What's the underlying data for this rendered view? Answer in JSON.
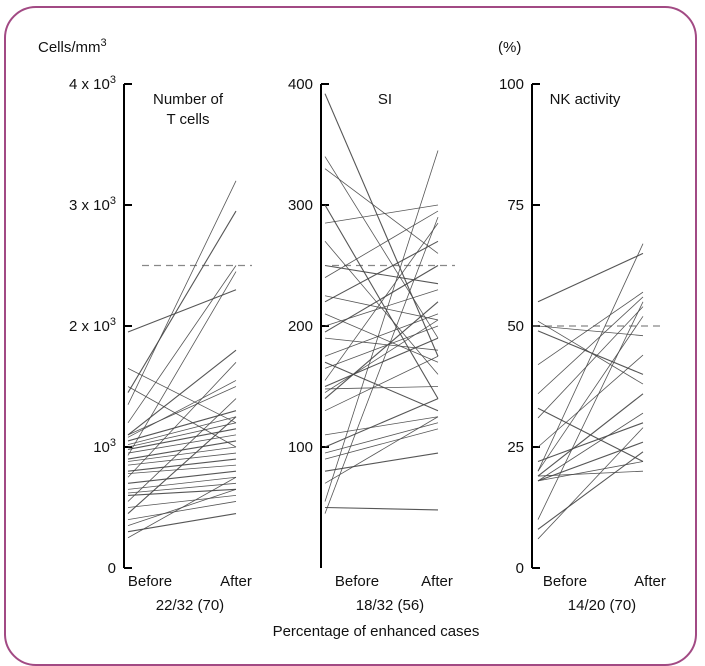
{
  "figure": {
    "bottom_label": "Percentage of enhanced cases",
    "colors": {
      "frame": "#a24a84",
      "line": "#444444",
      "axis": "#000000",
      "ref": "#888888"
    }
  },
  "chart_data": [
    {
      "type": "line",
      "title_lines": [
        "Number of",
        "T cells"
      ],
      "unit_label": "Cells/mm",
      "unit_sup": "3",
      "x": [
        "Before",
        "After"
      ],
      "ylim": [
        0,
        4000
      ],
      "y_ticks": [
        {
          "value": 0,
          "base": "0",
          "sup": ""
        },
        {
          "value": 1000,
          "base": "10",
          "sup": "3"
        },
        {
          "value": 2000,
          "base": "2 x 10",
          "sup": "3"
        },
        {
          "value": 3000,
          "base": "3 x 10",
          "sup": "3"
        },
        {
          "value": 4000,
          "base": "4 x 10",
          "sup": "3"
        }
      ],
      "reference": 2500,
      "caption": "22/32 (70)",
      "pairs": [
        [
          1950,
          2300
        ],
        [
          1650,
          1200
        ],
        [
          1500,
          1000
        ],
        [
          1450,
          2950
        ],
        [
          1350,
          3200
        ],
        [
          1200,
          2500
        ],
        [
          1100,
          1800
        ],
        [
          1100,
          1500
        ],
        [
          1080,
          1550
        ],
        [
          1050,
          1300
        ],
        [
          1020,
          1250
        ],
        [
          1000,
          1200
        ],
        [
          980,
          1150
        ],
        [
          950,
          1100
        ],
        [
          930,
          2450
        ],
        [
          900,
          1050
        ],
        [
          880,
          1000
        ],
        [
          850,
          950
        ],
        [
          800,
          900
        ],
        [
          780,
          850
        ],
        [
          750,
          1700
        ],
        [
          700,
          800
        ],
        [
          650,
          750
        ],
        [
          620,
          700
        ],
        [
          600,
          650
        ],
        [
          550,
          1400
        ],
        [
          500,
          600
        ],
        [
          450,
          1250
        ],
        [
          400,
          550
        ],
        [
          350,
          650
        ],
        [
          300,
          450
        ],
        [
          250,
          750
        ]
      ]
    },
    {
      "type": "line",
      "title_lines": [
        "SI"
      ],
      "unit_label": "",
      "unit_sup": "",
      "x": [
        "Before",
        "After"
      ],
      "ylim": [
        0,
        400
      ],
      "y_ticks": [
        {
          "value": 100,
          "base": "100",
          "sup": ""
        },
        {
          "value": 200,
          "base": "200",
          "sup": ""
        },
        {
          "value": 300,
          "base": "300",
          "sup": ""
        },
        {
          "value": 400,
          "base": "400",
          "sup": ""
        }
      ],
      "reference": 250,
      "caption": "18/32 (56)",
      "pairs": [
        [
          392,
          175
        ],
        [
          340,
          190
        ],
        [
          330,
          260
        ],
        [
          300,
          140
        ],
        [
          285,
          300
        ],
        [
          270,
          160
        ],
        [
          250,
          235
        ],
        [
          240,
          295
        ],
        [
          225,
          205
        ],
        [
          220,
          270
        ],
        [
          210,
          170
        ],
        [
          200,
          230
        ],
        [
          195,
          250
        ],
        [
          190,
          180
        ],
        [
          175,
          210
        ],
        [
          170,
          130
        ],
        [
          165,
          200
        ],
        [
          155,
          285
        ],
        [
          150,
          190
        ],
        [
          148,
          150
        ],
        [
          145,
          205
        ],
        [
          140,
          220
        ],
        [
          130,
          175
        ],
        [
          110,
          125
        ],
        [
          100,
          140
        ],
        [
          95,
          120
        ],
        [
          90,
          115
        ],
        [
          80,
          95
        ],
        [
          70,
          125
        ],
        [
          55,
          345
        ],
        [
          50,
          48
        ],
        [
          45,
          290
        ]
      ]
    },
    {
      "type": "line",
      "title_lines": [
        "NK activity"
      ],
      "unit_label": "(%)",
      "unit_sup": "",
      "x": [
        "Before",
        "After"
      ],
      "ylim": [
        0,
        100
      ],
      "y_ticks": [
        {
          "value": 0,
          "base": "0",
          "sup": ""
        },
        {
          "value": 25,
          "base": "25",
          "sup": ""
        },
        {
          "value": 50,
          "base": "50",
          "sup": ""
        },
        {
          "value": 75,
          "base": "75",
          "sup": ""
        },
        {
          "value": 100,
          "base": "100",
          "sup": ""
        }
      ],
      "reference": 50,
      "caption": "14/20 (70)",
      "pairs": [
        [
          55,
          65
        ],
        [
          51,
          38
        ],
        [
          50,
          48
        ],
        [
          49,
          40
        ],
        [
          42,
          57
        ],
        [
          36,
          56
        ],
        [
          33,
          22
        ],
        [
          31,
          54
        ],
        [
          25,
          44
        ],
        [
          22,
          30
        ],
        [
          20,
          67
        ],
        [
          20,
          52
        ],
        [
          19,
          36
        ],
        [
          19,
          20
        ],
        [
          18,
          32
        ],
        [
          18,
          26
        ],
        [
          18,
          22
        ],
        [
          10,
          55
        ],
        [
          8,
          24
        ],
        [
          6,
          29
        ]
      ]
    }
  ]
}
